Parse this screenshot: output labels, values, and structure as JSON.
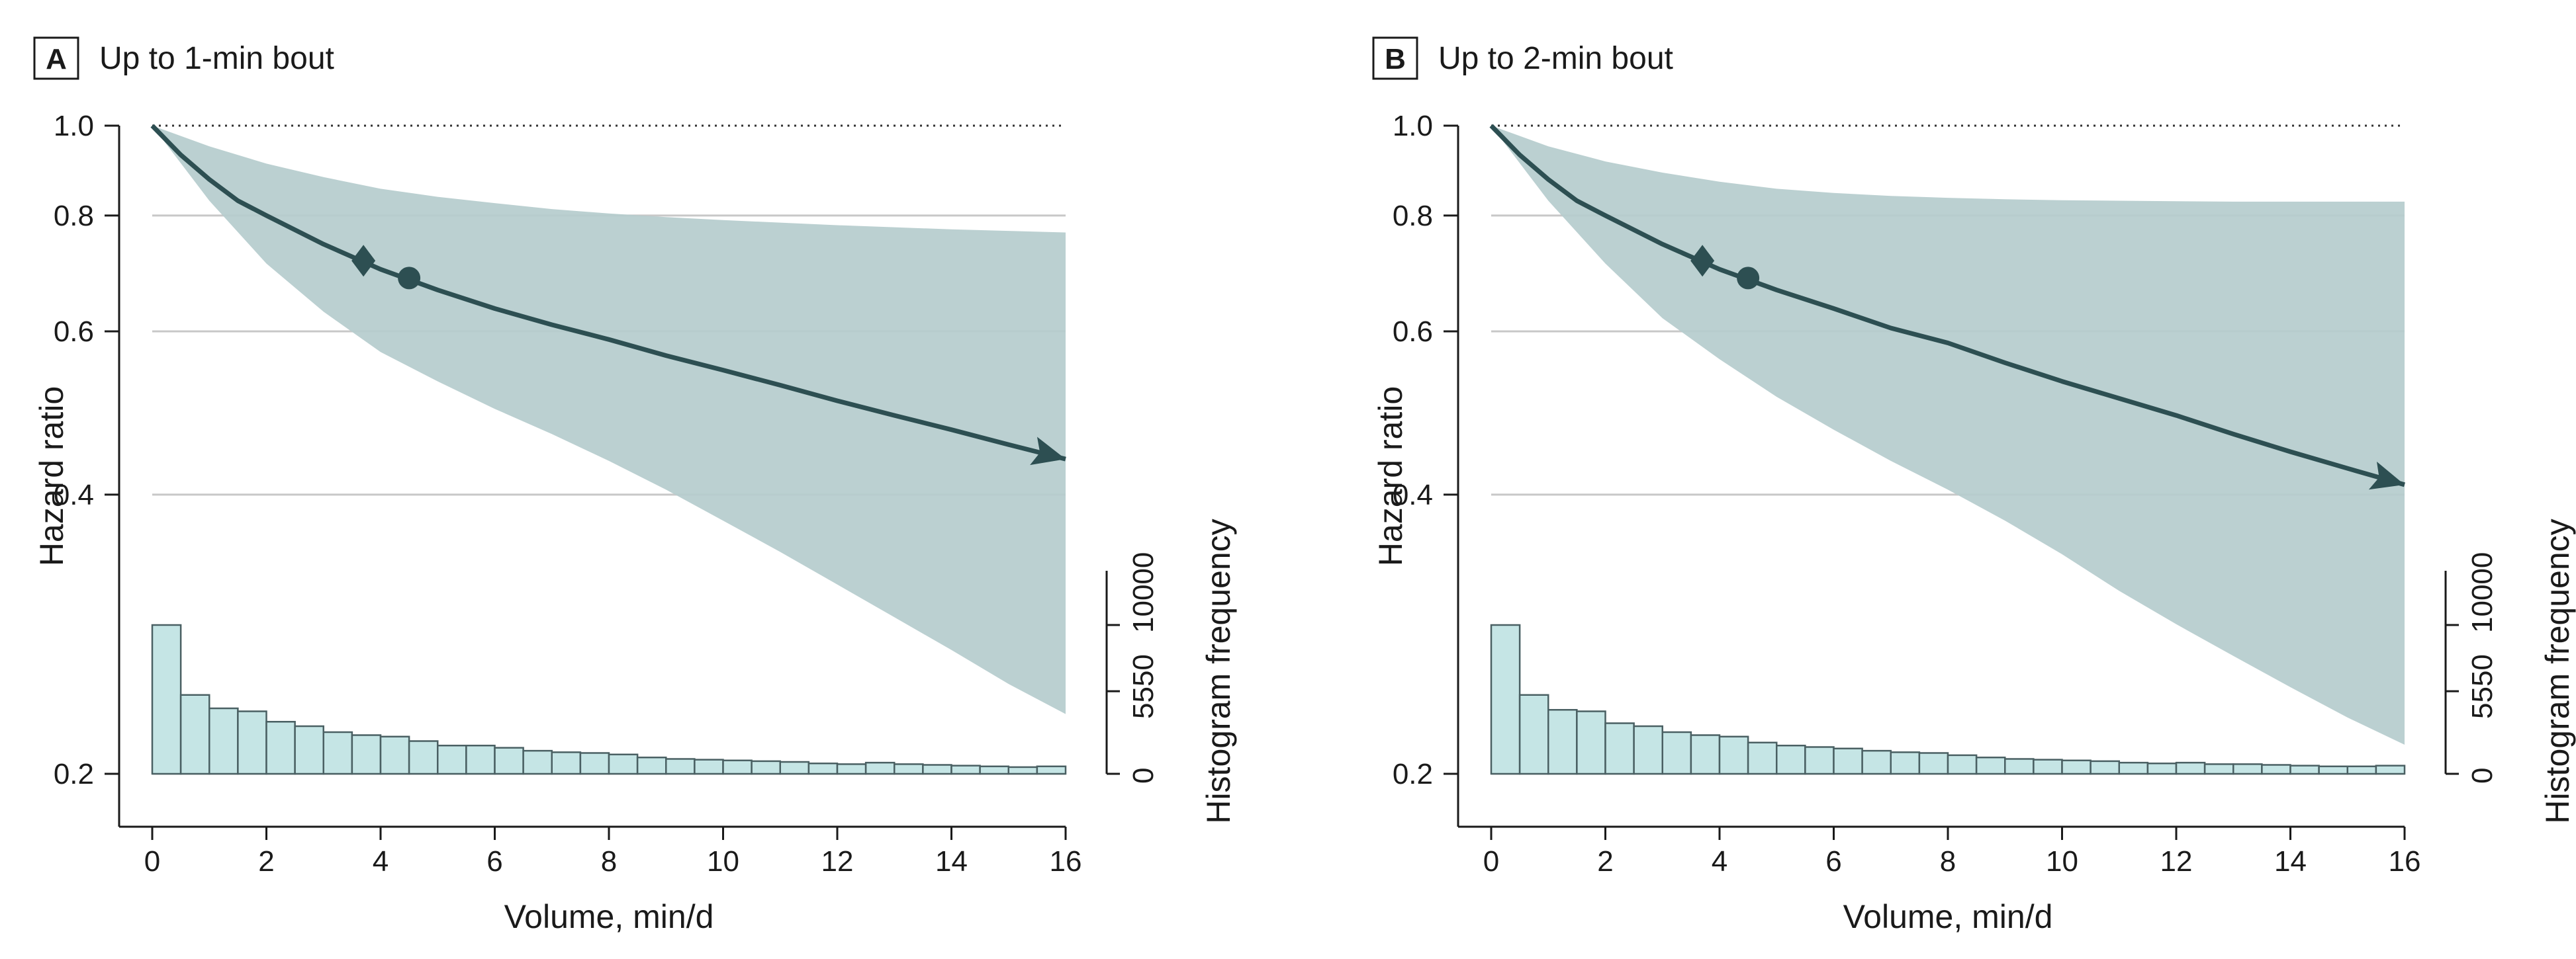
{
  "chart_data": [
    {
      "type": "line",
      "panel_letter": "A",
      "title": "Up to 1-min bout",
      "xlabel": "Volume, min/d",
      "ylabel": "Hazard ratio",
      "y2label": "Histogram frequency",
      "xlim": [
        0,
        16
      ],
      "ylim": [
        0.2,
        1.0
      ],
      "yscale": "log",
      "xticks": [
        0,
        2,
        4,
        6,
        8,
        10,
        12,
        14,
        16
      ],
      "yticks": [
        0.2,
        0.4,
        0.6,
        0.8,
        1.0
      ],
      "ytick_labels": [
        "0.2",
        "0.4",
        "0.6",
        "0.8",
        "1.0"
      ],
      "hist_ticks": [
        0,
        5550,
        10000
      ],
      "hist_tick_labels": [
        "0",
        "5550",
        "10000"
      ],
      "hist_max": 10000,
      "curve": {
        "x": [
          0,
          0.5,
          1,
          1.5,
          2,
          3,
          4,
          5,
          6,
          7,
          8,
          9,
          10,
          11,
          12,
          13,
          14,
          15,
          16
        ],
        "y": [
          1.0,
          0.93,
          0.875,
          0.83,
          0.8,
          0.745,
          0.7,
          0.665,
          0.635,
          0.61,
          0.588,
          0.565,
          0.545,
          0.525,
          0.505,
          0.487,
          0.47,
          0.453,
          0.437
        ]
      },
      "ci_upper": {
        "x": [
          0,
          1,
          2,
          3,
          4,
          5,
          6,
          7,
          8,
          9,
          10,
          11,
          12,
          13,
          14,
          15,
          16
        ],
        "y": [
          1.0,
          0.95,
          0.91,
          0.88,
          0.855,
          0.838,
          0.825,
          0.813,
          0.804,
          0.797,
          0.791,
          0.786,
          0.781,
          0.777,
          0.773,
          0.77,
          0.767
        ]
      },
      "ci_lower": {
        "x": [
          0,
          1,
          2,
          3,
          4,
          5,
          6,
          7,
          8,
          9,
          10,
          11,
          12,
          13,
          14,
          15,
          16
        ],
        "y": [
          1.0,
          0.83,
          0.71,
          0.63,
          0.57,
          0.53,
          0.495,
          0.465,
          0.435,
          0.405,
          0.375,
          0.347,
          0.32,
          0.295,
          0.272,
          0.25,
          0.232
        ]
      },
      "diamond_marker": {
        "x": 3.7,
        "y": 0.715
      },
      "circle_marker": {
        "x": 4.5,
        "y": 0.685
      },
      "histogram": {
        "bin_width": 0.5,
        "counts": [
          10000,
          5300,
          4400,
          4200,
          3500,
          3200,
          2800,
          2600,
          2500,
          2200,
          1900,
          1900,
          1750,
          1550,
          1450,
          1400,
          1300,
          1100,
          1000,
          950,
          900,
          850,
          800,
          700,
          650,
          750,
          650,
          600,
          550,
          500,
          450,
          500
        ]
      }
    },
    {
      "type": "line",
      "panel_letter": "B",
      "title": "Up to 2-min bout",
      "xlabel": "Volume, min/d",
      "ylabel": "Hazard ratio",
      "y2label": "Histogram frequency",
      "xlim": [
        0,
        16
      ],
      "ylim": [
        0.2,
        1.0
      ],
      "yscale": "log",
      "xticks": [
        0,
        2,
        4,
        6,
        8,
        10,
        12,
        14,
        16
      ],
      "yticks": [
        0.2,
        0.4,
        0.6,
        0.8,
        1.0
      ],
      "ytick_labels": [
        "0.2",
        "0.4",
        "0.6",
        "0.8",
        "1.0"
      ],
      "hist_ticks": [
        0,
        5550,
        10000
      ],
      "hist_tick_labels": [
        "0",
        "5550",
        "10000"
      ],
      "hist_max": 10000,
      "curve": {
        "x": [
          0,
          0.5,
          1,
          1.5,
          2,
          3,
          4,
          5,
          6,
          7,
          8,
          9,
          10,
          11,
          12,
          13,
          14,
          15,
          16
        ],
        "y": [
          1.0,
          0.93,
          0.875,
          0.83,
          0.8,
          0.745,
          0.7,
          0.665,
          0.635,
          0.605,
          0.583,
          0.555,
          0.53,
          0.508,
          0.487,
          0.465,
          0.445,
          0.427,
          0.41
        ]
      },
      "ci_upper": {
        "x": [
          0,
          1,
          2,
          3,
          4,
          5,
          6,
          7,
          8,
          9,
          10,
          11,
          12,
          13,
          14,
          15,
          16
        ],
        "y": [
          1.0,
          0.95,
          0.915,
          0.89,
          0.87,
          0.855,
          0.846,
          0.84,
          0.836,
          0.833,
          0.831,
          0.83,
          0.829,
          0.828,
          0.828,
          0.828,
          0.828
        ]
      },
      "ci_lower": {
        "x": [
          0,
          1,
          2,
          3,
          4,
          5,
          6,
          7,
          8,
          9,
          10,
          11,
          12,
          13,
          14,
          15,
          16
        ],
        "y": [
          1.0,
          0.83,
          0.71,
          0.62,
          0.56,
          0.51,
          0.47,
          0.435,
          0.405,
          0.375,
          0.345,
          0.315,
          0.29,
          0.268,
          0.248,
          0.23,
          0.215
        ]
      },
      "diamond_marker": {
        "x": 3.7,
        "y": 0.715
      },
      "circle_marker": {
        "x": 4.5,
        "y": 0.685
      },
      "histogram": {
        "bin_width": 0.5,
        "counts": [
          10000,
          5300,
          4300,
          4200,
          3400,
          3200,
          2800,
          2600,
          2500,
          2100,
          1900,
          1800,
          1700,
          1550,
          1450,
          1400,
          1250,
          1100,
          1000,
          950,
          900,
          850,
          750,
          700,
          750,
          650,
          650,
          600,
          550,
          500,
          500,
          550
        ]
      }
    }
  ],
  "colors": {
    "curve": "#2d4f52",
    "ci_band": "#b5cccd",
    "hist_fill": "#c5e5e5",
    "hist_stroke": "#4a6063",
    "gridline": "#c8c8c8",
    "axis": "#1a1a1a"
  }
}
